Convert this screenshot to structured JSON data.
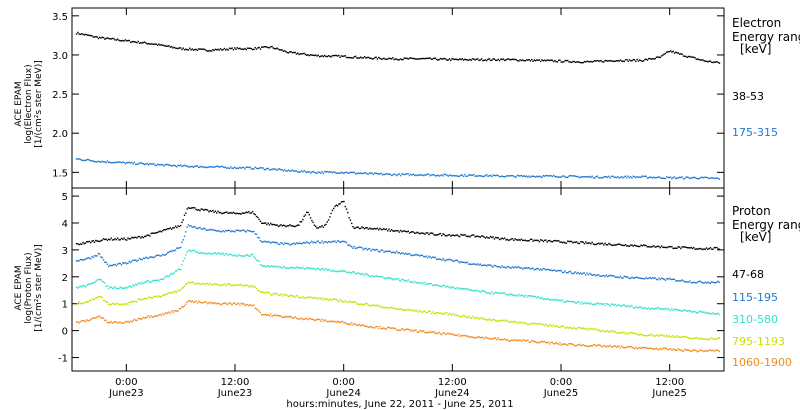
{
  "chart_data": {
    "type": "scatter",
    "xlabel": "hours:minutes, June 22, 2011 - June 25, 2011",
    "x_unit": "hours since June 22, 2011 00:00",
    "xlim": [
      18,
      90
    ],
    "x_ticks": [
      {
        "x": 24,
        "line1": "0:00",
        "line2": "June23"
      },
      {
        "x": 36,
        "line1": "12:00",
        "line2": "June23"
      },
      {
        "x": 48,
        "line1": "0:00",
        "line2": "June24"
      },
      {
        "x": 60,
        "line1": "12:00",
        "line2": "June24"
      },
      {
        "x": 72,
        "line1": "0:00",
        "line2": "June25"
      },
      {
        "x": 84,
        "line1": "12:00",
        "line2": "June25"
      }
    ],
    "panels": [
      {
        "name": "electron",
        "ylabel_lines": [
          "ACE EPAM",
          "log(Electron Flux)",
          "[1/(cm²s ster MeV)]"
        ],
        "ylim": [
          1.3,
          3.6
        ],
        "yticks": [
          1.5,
          2.0,
          2.5,
          3.0,
          3.5
        ],
        "yticklabels": [
          "1.5",
          "2.0",
          "2.5",
          "3.0",
          "3.5"
        ],
        "legend_title": [
          "Electron",
          "Energy ranges",
          "[keV]"
        ],
        "series": [
          {
            "name": "38-53",
            "color": "#000000",
            "points": [
              [
                18.5,
                3.28
              ],
              [
                21,
                3.22
              ],
              [
                24,
                3.18
              ],
              [
                27,
                3.14
              ],
              [
                30,
                3.08
              ],
              [
                33,
                3.06
              ],
              [
                36,
                3.08
              ],
              [
                38,
                3.08
              ],
              [
                40,
                3.1
              ],
              [
                42,
                3.03
              ],
              [
                45,
                2.99
              ],
              [
                48,
                2.98
              ],
              [
                51,
                2.96
              ],
              [
                54,
                2.95
              ],
              [
                57,
                2.95
              ],
              [
                60,
                2.94
              ],
              [
                63,
                2.94
              ],
              [
                66,
                2.94
              ],
              [
                69,
                2.93
              ],
              [
                72,
                2.92
              ],
              [
                75,
                2.91
              ],
              [
                78,
                2.93
              ],
              [
                81,
                2.93
              ],
              [
                83,
                2.97
              ],
              [
                84,
                3.05
              ],
              [
                86,
                2.98
              ],
              [
                88,
                2.92
              ],
              [
                89.5,
                2.9
              ]
            ]
          },
          {
            "name": "175-315",
            "color": "#1f78d1",
            "points": [
              [
                18.5,
                1.67
              ],
              [
                21,
                1.64
              ],
              [
                24,
                1.62
              ],
              [
                27,
                1.6
              ],
              [
                30,
                1.58
              ],
              [
                33,
                1.57
              ],
              [
                36,
                1.56
              ],
              [
                39,
                1.55
              ],
              [
                42,
                1.52
              ],
              [
                45,
                1.5
              ],
              [
                48,
                1.5
              ],
              [
                51,
                1.48
              ],
              [
                54,
                1.47
              ],
              [
                57,
                1.47
              ],
              [
                60,
                1.46
              ],
              [
                63,
                1.46
              ],
              [
                66,
                1.45
              ],
              [
                69,
                1.45
              ],
              [
                72,
                1.45
              ],
              [
                75,
                1.44
              ],
              [
                78,
                1.44
              ],
              [
                81,
                1.44
              ],
              [
                84,
                1.43
              ],
              [
                87,
                1.43
              ],
              [
                89.5,
                1.42
              ]
            ]
          }
        ]
      },
      {
        "name": "proton",
        "ylabel_lines": [
          "ACE EPAM",
          "log(Proton Flux)",
          "[1/(cm²s ster MeV)]"
        ],
        "ylim": [
          -1.5,
          5.3
        ],
        "yticks": [
          -1,
          0,
          1,
          2,
          3,
          4,
          5
        ],
        "yticklabels": [
          "-1",
          "0",
          "1",
          "2",
          "3",
          "4",
          "5"
        ],
        "legend_title": [
          "Proton",
          "Energy ranges",
          "[keV]"
        ],
        "series": [
          {
            "name": "47-68",
            "color": "#000000",
            "points": [
              [
                18.5,
                3.2
              ],
              [
                20,
                3.3
              ],
              [
                22,
                3.4
              ],
              [
                24,
                3.4
              ],
              [
                26,
                3.5
              ],
              [
                28,
                3.7
              ],
              [
                30,
                3.9
              ],
              [
                30.8,
                4.6
              ],
              [
                32,
                4.5
              ],
              [
                34,
                4.4
              ],
              [
                36,
                4.35
              ],
              [
                38,
                4.4
              ],
              [
                39,
                4.0
              ],
              [
                41,
                3.9
              ],
              [
                43,
                3.9
              ],
              [
                44,
                4.4
              ],
              [
                45,
                3.8
              ],
              [
                46,
                3.9
              ],
              [
                47,
                4.6
              ],
              [
                48,
                4.8
              ],
              [
                49,
                3.85
              ],
              [
                51,
                3.8
              ],
              [
                54,
                3.7
              ],
              [
                57,
                3.6
              ],
              [
                60,
                3.55
              ],
              [
                63,
                3.5
              ],
              [
                66,
                3.4
              ],
              [
                69,
                3.35
              ],
              [
                72,
                3.3
              ],
              [
                75,
                3.25
              ],
              [
                78,
                3.2
              ],
              [
                81,
                3.15
              ],
              [
                84,
                3.1
              ],
              [
                87,
                3.05
              ],
              [
                89.5,
                3.05
              ]
            ]
          },
          {
            "name": "115-195",
            "color": "#1f78d1",
            "points": [
              [
                18.5,
                2.6
              ],
              [
                20,
                2.7
              ],
              [
                21,
                2.85
              ],
              [
                22,
                2.4
              ],
              [
                24,
                2.5
              ],
              [
                26,
                2.7
              ],
              [
                28,
                2.8
              ],
              [
                30,
                3.1
              ],
              [
                30.8,
                3.9
              ],
              [
                32,
                3.8
              ],
              [
                34,
                3.7
              ],
              [
                36,
                3.7
              ],
              [
                38,
                3.7
              ],
              [
                39,
                3.3
              ],
              [
                42,
                3.2
              ],
              [
                45,
                3.3
              ],
              [
                48,
                3.3
              ],
              [
                49,
                3.1
              ],
              [
                51,
                3.0
              ],
              [
                54,
                2.9
              ],
              [
                57,
                2.75
              ],
              [
                60,
                2.6
              ],
              [
                63,
                2.45
              ],
              [
                66,
                2.35
              ],
              [
                69,
                2.3
              ],
              [
                72,
                2.2
              ],
              [
                75,
                2.1
              ],
              [
                78,
                2.0
              ],
              [
                81,
                1.95
              ],
              [
                84,
                1.9
              ],
              [
                87,
                1.8
              ],
              [
                89.5,
                1.8
              ]
            ]
          },
          {
            "name": "310-580",
            "color": "#33e0c8",
            "points": [
              [
                18.5,
                1.6
              ],
              [
                20,
                1.7
              ],
              [
                21,
                1.95
              ],
              [
                22,
                1.6
              ],
              [
                24,
                1.6
              ],
              [
                26,
                1.8
              ],
              [
                28,
                1.9
              ],
              [
                30,
                2.3
              ],
              [
                30.8,
                3.0
              ],
              [
                32,
                2.9
              ],
              [
                34,
                2.85
              ],
              [
                36,
                2.8
              ],
              [
                38,
                2.8
              ],
              [
                39,
                2.4
              ],
              [
                42,
                2.35
              ],
              [
                45,
                2.3
              ],
              [
                48,
                2.2
              ],
              [
                51,
                2.05
              ],
              [
                54,
                1.9
              ],
              [
                57,
                1.75
              ],
              [
                60,
                1.6
              ],
              [
                63,
                1.45
              ],
              [
                66,
                1.35
              ],
              [
                69,
                1.25
              ],
              [
                72,
                1.1
              ],
              [
                75,
                1.0
              ],
              [
                78,
                0.95
              ],
              [
                81,
                0.85
              ],
              [
                84,
                0.8
              ],
              [
                87,
                0.7
              ],
              [
                89.5,
                0.6
              ]
            ]
          },
          {
            "name": "795-1193",
            "color": "#c8e000",
            "points": [
              [
                18.5,
                1.0
              ],
              [
                20,
                1.1
              ],
              [
                21,
                1.3
              ],
              [
                22,
                1.0
              ],
              [
                24,
                1.0
              ],
              [
                26,
                1.2
              ],
              [
                28,
                1.3
              ],
              [
                30,
                1.5
              ],
              [
                30.8,
                1.8
              ],
              [
                32,
                1.75
              ],
              [
                34,
                1.7
              ],
              [
                36,
                1.7
              ],
              [
                38,
                1.65
              ],
              [
                39,
                1.4
              ],
              [
                42,
                1.3
              ],
              [
                45,
                1.2
              ],
              [
                48,
                1.1
              ],
              [
                51,
                0.95
              ],
              [
                54,
                0.8
              ],
              [
                57,
                0.7
              ],
              [
                60,
                0.6
              ],
              [
                63,
                0.45
              ],
              [
                66,
                0.35
              ],
              [
                69,
                0.25
              ],
              [
                72,
                0.15
              ],
              [
                75,
                0.05
              ],
              [
                78,
                -0.05
              ],
              [
                81,
                -0.15
              ],
              [
                84,
                -0.2
              ],
              [
                87,
                -0.3
              ],
              [
                89.5,
                -0.3
              ]
            ]
          },
          {
            "name": "1060-1900",
            "color": "#f08a1c",
            "points": [
              [
                18.5,
                0.3
              ],
              [
                20,
                0.4
              ],
              [
                21,
                0.55
              ],
              [
                22,
                0.3
              ],
              [
                24,
                0.3
              ],
              [
                26,
                0.5
              ],
              [
                28,
                0.6
              ],
              [
                30,
                0.8
              ],
              [
                30.8,
                1.1
              ],
              [
                32,
                1.05
              ],
              [
                34,
                1.0
              ],
              [
                36,
                1.0
              ],
              [
                38,
                0.95
              ],
              [
                39,
                0.6
              ],
              [
                42,
                0.5
              ],
              [
                45,
                0.4
              ],
              [
                48,
                0.3
              ],
              [
                51,
                0.15
              ],
              [
                54,
                0.05
              ],
              [
                57,
                -0.05
              ],
              [
                60,
                -0.15
              ],
              [
                63,
                -0.25
              ],
              [
                66,
                -0.35
              ],
              [
                69,
                -0.4
              ],
              [
                72,
                -0.5
              ],
              [
                75,
                -0.55
              ],
              [
                78,
                -0.6
              ],
              [
                81,
                -0.65
              ],
              [
                84,
                -0.7
              ],
              [
                87,
                -0.75
              ],
              [
                89.5,
                -0.75
              ]
            ]
          }
        ]
      }
    ]
  }
}
